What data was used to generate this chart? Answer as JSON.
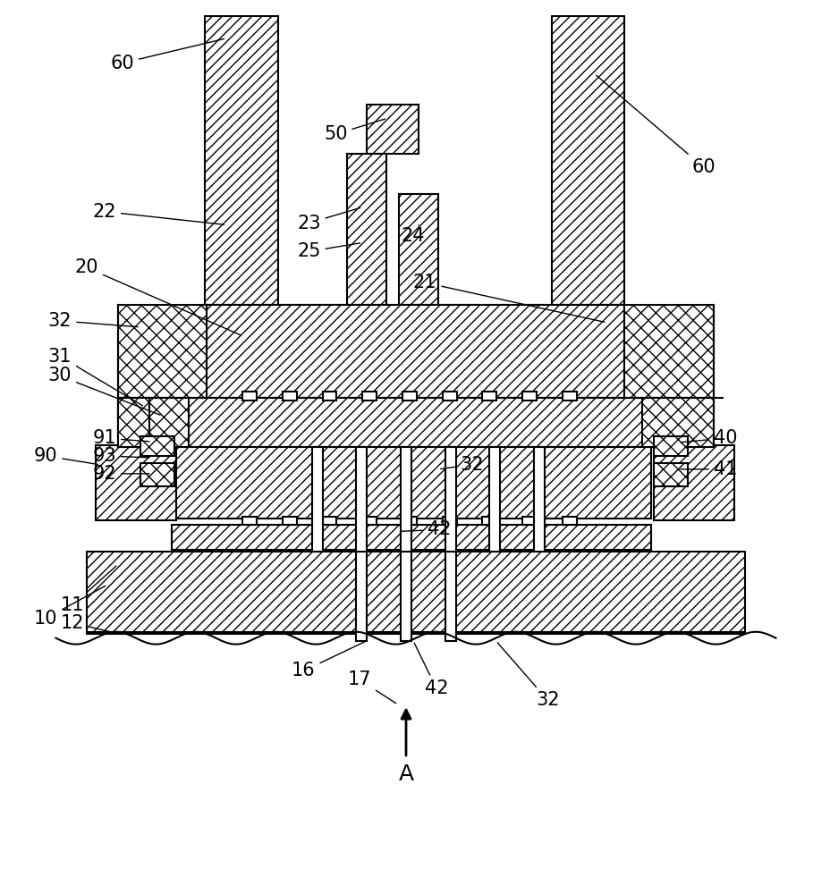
{
  "fig_width": 9.09,
  "fig_height": 10.0,
  "bg_color": "#ffffff",
  "line_color": "#000000"
}
